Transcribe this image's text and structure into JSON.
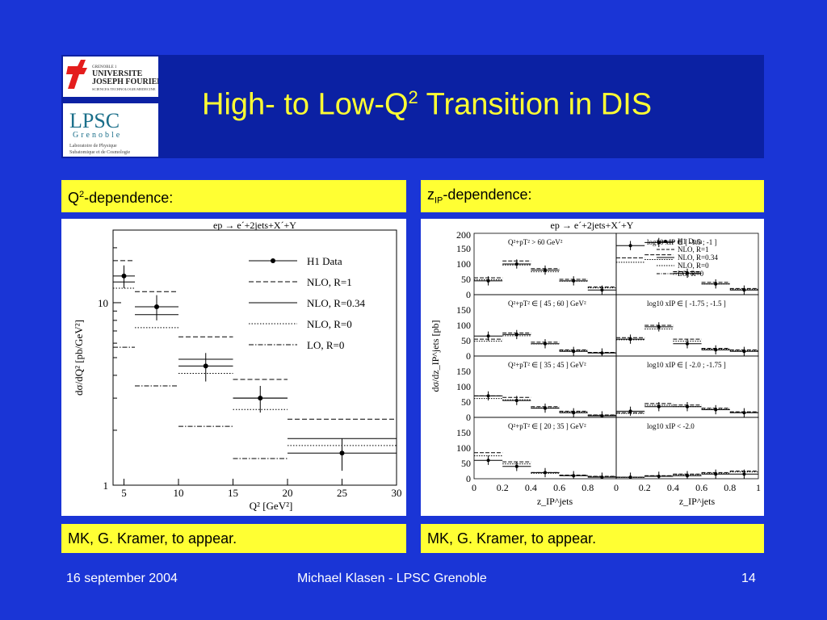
{
  "slide": {
    "title_main": "High- to Low-Q",
    "title_sup": "2",
    "title_rest": " Transition in DIS",
    "logo1": {
      "line1": "UNIVERSITE",
      "line2": "JOSEPH FOURIER",
      "line3": "SCIENCES.TECHNOLOGIE.MEDECINE",
      "top": "GRENOBLE 1"
    },
    "logo2": {
      "name": "LPSC",
      "sub": "Grenoble",
      "desc1": "Laboratoire de Physique",
      "desc2": "Subatomique et de Cosmologie"
    },
    "left_caption_main": "Q",
    "left_caption_sup": "2",
    "left_caption_rest": "-dependence:",
    "right_caption_main": "z",
    "right_caption_sub": "IP",
    "right_caption_rest": "-dependence:",
    "left_ref": "MK, G. Kramer, to appear.",
    "right_ref": "MK, G. Kramer, to appear.",
    "footer_date": "16 september 2004",
    "footer_author": "Michael Klasen - LPSC Grenoble",
    "footer_page": "14",
    "colors": {
      "bg": "#1a35d6",
      "header": "#0b21a3",
      "accent": "#ffff33"
    }
  },
  "chart_data": [
    {
      "type": "step",
      "title": "ep → e´+2jets+X´+Y",
      "xlabel": "Q² [GeV²]",
      "ylabel": "dσ/dQ² [pb/GeV²]",
      "xlim": [
        4,
        30
      ],
      "ylim": [
        1,
        25
      ],
      "yscale": "log",
      "xticks": [
        "5",
        "10",
        "15",
        "20",
        "25",
        "30"
      ],
      "yticks": [
        "1",
        "10"
      ],
      "bins": [
        [
          4,
          6
        ],
        [
          6,
          10
        ],
        [
          10,
          15
        ],
        [
          15,
          20
        ],
        [
          20,
          30
        ]
      ],
      "data": {
        "name": "H1 Data",
        "x": [
          5,
          8,
          12.5,
          17.5,
          25
        ],
        "y": [
          14,
          9.5,
          4.5,
          3.0,
          1.5
        ],
        "err": [
          2,
          1.5,
          0.8,
          0.5,
          0.3
        ]
      },
      "series": [
        {
          "name": "NLO, R=1",
          "style": "dashed",
          "values": [
            17,
            11.5,
            6.5,
            3.8,
            2.3
          ]
        },
        {
          "name": "NLO, R=0.34",
          "style": "solid",
          "values": [
            13,
            8.6,
            4.9,
            3.0,
            1.8
          ]
        },
        {
          "name": "NLO, R=0",
          "style": "dotted",
          "values": [
            12,
            7.3,
            4.1,
            2.6,
            1.65
          ]
        },
        {
          "name": "LO, R=0",
          "style": "dashdot",
          "values": [
            5.7,
            3.5,
            2.1,
            1.4,
            1.0
          ]
        }
      ],
      "legend": [
        "H1 Data",
        "NLO, R=1",
        "NLO, R=0.34",
        "NLO, R=0",
        "LO, R=0"
      ]
    },
    {
      "type": "step-grid",
      "title": "ep → e´+2jets+X´+Y",
      "ylabel": "dσ/dz_IP^jets [pb]",
      "xlabel": "z_IP^jets",
      "yticks": [
        "0",
        "50",
        "100",
        "150",
        "200"
      ],
      "xticks_left": [
        "0",
        "0.2",
        "0.4",
        "0.6",
        "0.8"
      ],
      "xticks_right": [
        "0",
        "0.2",
        "0.4",
        "0.6",
        "0.8",
        "1"
      ],
      "legend": [
        "H1 Data",
        "NLO, R=1",
        "NLO, R=0.34",
        "NLO, R=0",
        "LO, R=0"
      ],
      "panels": [
        {
          "label": "Q²+pT² > 60 GeV²",
          "data": [
            45,
            100,
            80,
            45,
            15
          ],
          "nlo": [
            55,
            110,
            85,
            50,
            25
          ]
        },
        {
          "label": "log10 xIP ∈ [ -1.5 ; -1 ]",
          "data": [
            160,
            170,
            70,
            35,
            15
          ],
          "nlo": [
            120,
            130,
            75,
            40,
            20
          ]
        },
        {
          "label": "Q²+pT² ∈ [ 45 ; 60 ] GeV²",
          "data": [
            65,
            70,
            40,
            15,
            10
          ],
          "nlo": [
            55,
            75,
            45,
            20,
            12
          ]
        },
        {
          "label": "log10 xIP ∈ [ -1.75 ; -1.5 ]",
          "data": [
            55,
            95,
            40,
            20,
            15
          ],
          "nlo": [
            60,
            100,
            55,
            25,
            20
          ]
        },
        {
          "label": "Q²+pT² ∈ [ 35 ; 45 ] GeV²",
          "data": [
            70,
            55,
            30,
            15,
            5
          ],
          "nlo": [
            70,
            65,
            35,
            20,
            8
          ]
        },
        {
          "label": "log10 xIP ∈ [ -2.0 ; -1.75 ]",
          "data": [
            20,
            35,
            35,
            25,
            15
          ],
          "nlo": [
            15,
            45,
            40,
            30,
            18
          ]
        },
        {
          "label": "Q²+pT² ∈ [ 20 ; 35 ] GeV²",
          "data": [
            60,
            40,
            20,
            10,
            5
          ],
          "nlo": [
            85,
            55,
            20,
            12,
            8
          ]
        },
        {
          "label": "log10 xIP < -2.0",
          "data": [
            5,
            8,
            10,
            15,
            15
          ],
          "nlo": [
            5,
            10,
            15,
            20,
            25
          ]
        }
      ]
    }
  ]
}
